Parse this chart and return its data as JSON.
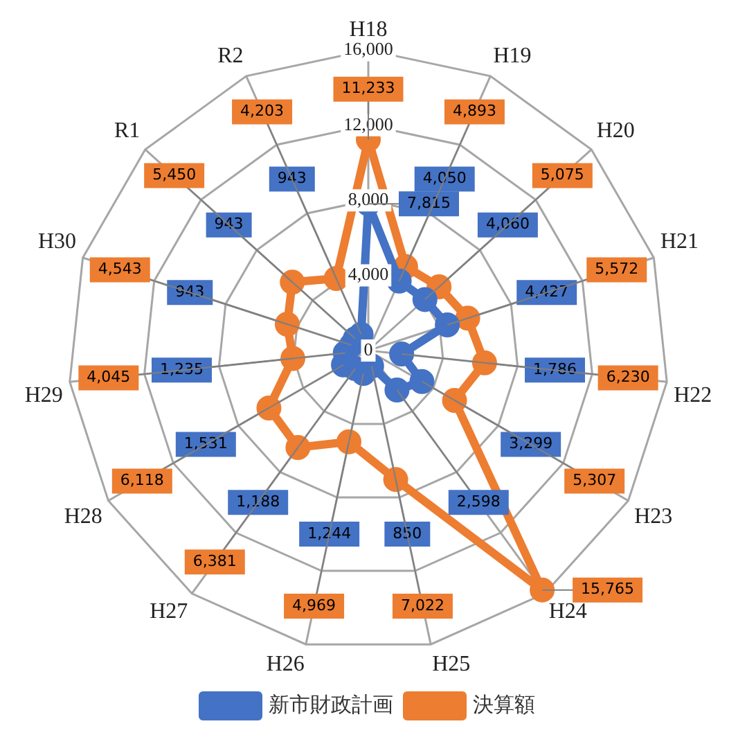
{
  "chart_data": {
    "type": "radar",
    "categories": [
      "H18",
      "H19",
      "H20",
      "H21",
      "H22",
      "H23",
      "H24",
      "H25",
      "H26",
      "H27",
      "H28",
      "H29",
      "H30",
      "R1",
      "R2"
    ],
    "series": [
      {
        "name": "新市財政計画",
        "color": "#4472c4",
        "values": [
          7815,
          4050,
          4060,
          4427,
          1786,
          3299,
          2598,
          850,
          1244,
          1188,
          1531,
          1235,
          943,
          943,
          943
        ],
        "value_labels": [
          "7,815",
          "4,050",
          "4,060",
          "4,427",
          "1,786",
          "3,299",
          "2,598",
          "850",
          "1,244",
          "1,188",
          "1,531",
          "1,235",
          "943",
          "943",
          "943"
        ]
      },
      {
        "name": "決算額",
        "color": "#ed7d31",
        "values": [
          11233,
          4893,
          5075,
          5572,
          6230,
          5307,
          15765,
          7022,
          4969,
          6381,
          6118,
          4045,
          4543,
          5450,
          4203
        ],
        "value_labels": [
          "11,233",
          "4,893",
          "5,075",
          "5,572",
          "6,230",
          "5,307",
          "15,765",
          "7,022",
          "4,969",
          "6,381",
          "6,118",
          "4,045",
          "4,543",
          "5,450",
          "4,203"
        ]
      }
    ],
    "ylim": [
      0,
      16000
    ],
    "yticks": [
      0,
      {
        "value": 4000,
        "label": "4,000"
      },
      {
        "value": 8000,
        "label": "8,000"
      },
      {
        "value": 12000,
        "label": "12,000"
      },
      {
        "value": 16000,
        "label": "16,000"
      }
    ],
    "grid": true,
    "legend": "bottom",
    "marker": "circle"
  }
}
